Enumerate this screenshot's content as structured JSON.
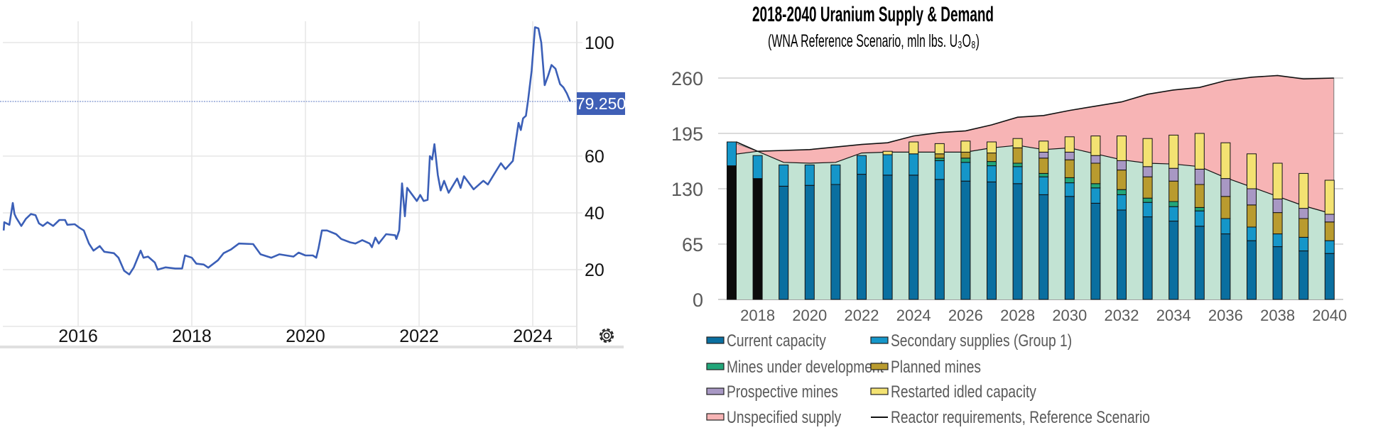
{
  "colors": {
    "price_line": "#3b5fb7",
    "price_label_bg": "#3f5fb6",
    "grid": "#e6e6e6",
    "current_capacity": "#0a6fa0",
    "historical_bar": "#0b0b0b",
    "secondary_supplies": "#1596c9",
    "mines_under_development": "#22a67a",
    "planned_mines": "#b99b2f",
    "prospective_mines": "#a898c4",
    "restarted_idled_capacity": "#f3e272",
    "unspecified_supply": "#f7b4b5",
    "identified_supply_area": "#c2e3d3",
    "reactor_line": "#111111"
  },
  "icons": {
    "settings": "gear-icon"
  },
  "chart_data": [
    {
      "type": "line",
      "title": "",
      "xlabel": "",
      "ylabel": "",
      "xlim": [
        2014.68,
        2024.75
      ],
      "ylim": [
        0,
        107
      ],
      "grid": true,
      "x_ticks": [
        "2016",
        "2018",
        "2020",
        "2022",
        "2024"
      ],
      "x_tick_values": [
        2016,
        2018,
        2020,
        2022,
        2024
      ],
      "y_ticks": [
        "20",
        "40",
        "60",
        "100"
      ],
      "y_tick_values": [
        20,
        40,
        60,
        100
      ],
      "last_value_label": "79.250",
      "last_value": 79.25,
      "series": [
        {
          "name": "price",
          "x": [
            2014.69,
            2014.7,
            2014.79,
            2014.85,
            2014.88,
            2014.91,
            2015.0,
            2015.08,
            2015.17,
            2015.25,
            2015.31,
            2015.38,
            2015.46,
            2015.56,
            2015.67,
            2015.77,
            2015.81,
            2015.94,
            2016.02,
            2016.1,
            2016.19,
            2016.27,
            2016.38,
            2016.46,
            2016.63,
            2016.71,
            2016.81,
            2016.9,
            2016.98,
            2017.1,
            2017.15,
            2017.23,
            2017.35,
            2017.4,
            2017.54,
            2017.71,
            2017.83,
            2017.88,
            2018.0,
            2018.08,
            2018.21,
            2018.29,
            2018.46,
            2018.56,
            2018.69,
            2018.83,
            2019.08,
            2019.21,
            2019.4,
            2019.54,
            2019.79,
            2019.88,
            2020.0,
            2020.13,
            2020.19,
            2020.23,
            2020.29,
            2020.38,
            2020.54,
            2020.63,
            2020.79,
            2020.88,
            2021.0,
            2021.13,
            2021.17,
            2021.23,
            2021.29,
            2021.42,
            2021.58,
            2021.6,
            2021.65,
            2021.7,
            2021.75,
            2021.79,
            2021.96,
            2022.02,
            2022.08,
            2022.15,
            2022.19,
            2022.23,
            2022.27,
            2022.33,
            2022.38,
            2022.44,
            2022.52,
            2022.67,
            2022.73,
            2022.79,
            2022.96,
            2023.13,
            2023.21,
            2023.31,
            2023.44,
            2023.52,
            2023.65,
            2023.75,
            2023.79,
            2023.83,
            2023.88,
            2023.92,
            2023.98,
            2024.04,
            2024.1,
            2024.15,
            2024.21,
            2024.27,
            2024.33,
            2024.4,
            2024.48,
            2024.54,
            2024.6,
            2024.66
          ],
          "y": [
            33.8,
            36.7,
            35.8,
            43.5,
            39.6,
            38.3,
            35.4,
            37.9,
            39.6,
            39.2,
            36.3,
            35.4,
            36.7,
            35.4,
            37.5,
            37.5,
            35.8,
            36.0,
            34.8,
            33.8,
            29.2,
            26.7,
            28.3,
            26.3,
            25.8,
            24.2,
            19.6,
            18.3,
            20.8,
            26.7,
            24.2,
            24.6,
            22.5,
            20.0,
            20.8,
            20.4,
            20.4,
            25.0,
            24.2,
            22.1,
            21.8,
            20.7,
            23.3,
            25.8,
            27.1,
            29.2,
            29.0,
            25.4,
            24.2,
            25.4,
            24.6,
            26.0,
            25.0,
            25.0,
            24.2,
            27.5,
            33.8,
            33.8,
            32.5,
            30.8,
            29.6,
            29.2,
            30.4,
            29.2,
            27.9,
            31.3,
            29.2,
            32.5,
            32.1,
            30.8,
            33.8,
            50.4,
            38.8,
            48.8,
            44.2,
            46.3,
            44.2,
            44.6,
            60.0,
            58.8,
            64.2,
            53.3,
            47.9,
            51.3,
            47.1,
            52.1,
            48.8,
            52.9,
            48.3,
            51.3,
            50.0,
            53.3,
            57.5,
            55.4,
            58.3,
            71.7,
            69.2,
            73.3,
            74.2,
            80.0,
            90.0,
            105.4,
            105.0,
            100.0,
            85.0,
            88.3,
            92.1,
            90.8,
            85.4,
            84.2,
            82.1,
            79.25
          ]
        }
      ]
    },
    {
      "type": "bar",
      "stacked": true,
      "title": "2018-2040 Uranium Supply & Demand",
      "subtitle": "(WNA Reference Scenario, mln lbs. U₃O₈)",
      "xlabel": "",
      "ylabel": "",
      "ylim": [
        0,
        260
      ],
      "grid": true,
      "legend_position": "bottom",
      "y_ticks": [
        "0",
        "65",
        "130",
        "195",
        "260"
      ],
      "y_tick_values": [
        0,
        65,
        130,
        195,
        260
      ],
      "categories": [
        2017,
        2018,
        2019,
        2020,
        2021,
        2022,
        2023,
        2024,
        2025,
        2026,
        2027,
        2028,
        2029,
        2030,
        2031,
        2032,
        2033,
        2034,
        2035,
        2036,
        2037,
        2038,
        2039,
        2040
      ],
      "x_tick_labels": [
        "2018",
        "2020",
        "2022",
        "2024",
        "2026",
        "2028",
        "2030",
        "2032",
        "2034",
        "2036",
        "2038",
        "2040"
      ],
      "x_tick_values": [
        2018,
        2020,
        2022,
        2024,
        2026,
        2028,
        2030,
        2032,
        2034,
        2036,
        2038,
        2040
      ],
      "historical_bar_categories": [
        2017,
        2018
      ],
      "series": [
        {
          "key": "current_capacity",
          "name": "Current capacity",
          "values": [
            157,
            142,
            133,
            134,
            135,
            147,
            146,
            146,
            141,
            139,
            138,
            136,
            123,
            121,
            113,
            105,
            97,
            92,
            86,
            77,
            69,
            62,
            57,
            54
          ]
        },
        {
          "key": "secondary_supplies",
          "name": "Secondary supplies (Group 1)",
          "values": [
            28,
            27,
            25,
            24,
            23,
            22,
            24,
            25,
            22,
            22,
            19,
            20,
            21,
            16,
            18,
            18,
            17,
            17,
            18,
            18,
            16,
            15,
            16,
            15
          ]
        },
        {
          "key": "mines_under_development",
          "name": "Mines under development",
          "values": [
            0,
            0,
            0,
            0,
            0,
            0,
            0,
            0,
            3,
            5,
            5,
            4,
            4,
            6,
            5,
            6,
            5,
            6,
            4,
            0,
            0,
            0,
            0,
            0
          ]
        },
        {
          "key": "planned_mines",
          "name": "Planned mines",
          "values": [
            0,
            0,
            0,
            0,
            0,
            0,
            0,
            0,
            5,
            7,
            10,
            18,
            18,
            21,
            24,
            23,
            25,
            24,
            27,
            26,
            26,
            25,
            22,
            22
          ]
        },
        {
          "key": "prospective_mines",
          "name": "Prospective mines",
          "values": [
            0,
            0,
            0,
            0,
            0,
            0,
            0,
            0,
            0,
            0,
            0,
            0,
            7,
            9,
            9,
            11,
            12,
            15,
            18,
            21,
            19,
            16,
            12,
            9
          ]
        },
        {
          "key": "restarted_idled_capacity",
          "name": "Restarted idled capacity",
          "values": [
            0,
            0,
            0,
            0,
            0,
            0,
            4,
            14,
            12,
            13,
            13,
            11,
            13,
            18,
            23,
            29,
            33,
            39,
            42,
            42,
            41,
            42,
            41,
            40
          ]
        }
      ],
      "areas": {
        "identified_supply_top": [
          170,
          174,
          161,
          160,
          161,
          172,
          173,
          173,
          173,
          173,
          178,
          181,
          176,
          178,
          171,
          164,
          160,
          159,
          156,
          143,
          132,
          121,
          110,
          100
        ],
        "unspecified_supply_name": "Unspecified supply"
      },
      "line": {
        "name": "Reactor requirements, Reference Scenario",
        "values": [
          185,
          174,
          175,
          176,
          179,
          182,
          184,
          192,
          196,
          198,
          205,
          214,
          216,
          222,
          227,
          232,
          241,
          246,
          249,
          257,
          261,
          263,
          259,
          260
        ]
      }
    }
  ]
}
